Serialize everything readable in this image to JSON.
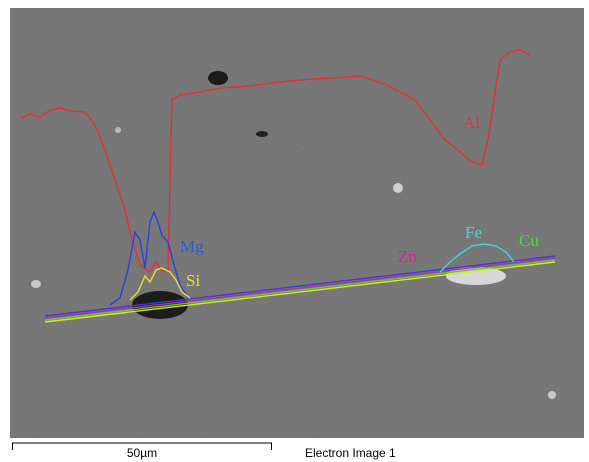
{
  "image": {
    "element_labels": [
      "Al",
      "Mg",
      "Si",
      "Zn",
      "Fe",
      "Cu"
    ],
    "scale_bar": "50µm",
    "caption": "Electron Image 1"
  }
}
